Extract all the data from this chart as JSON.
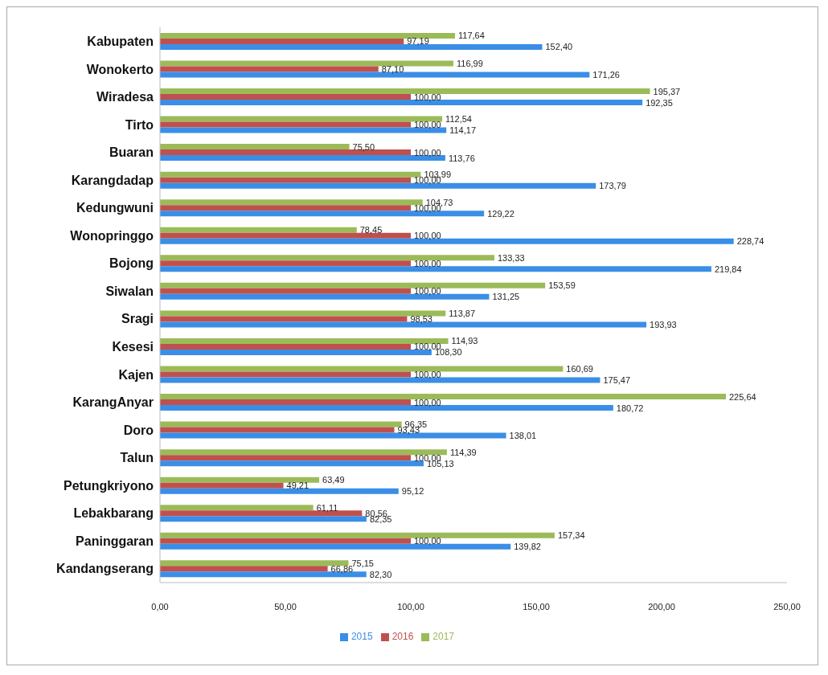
{
  "chart_data": {
    "type": "bar",
    "orientation": "horizontal",
    "categories": [
      "Kabupaten",
      "Wonokerto",
      "Wiradesa",
      "Tirto",
      "Buaran",
      "Karangdadap",
      "Kedungwuni",
      "Wonopringgo",
      "Bojong",
      "Siwalan",
      "Sragi",
      "Kesesi",
      "Kajen",
      "KarangAnyar",
      "Doro",
      "Talun",
      "Petungkriyono",
      "Lebakbarang",
      "Paninggaran",
      "Kandangserang"
    ],
    "series": [
      {
        "name": "2017",
        "color": "#9bbb59",
        "values": [
          117.64,
          116.99,
          195.37,
          112.54,
          75.5,
          103.99,
          104.73,
          78.45,
          133.33,
          153.59,
          113.87,
          114.93,
          160.69,
          225.64,
          96.35,
          114.39,
          63.49,
          61.11,
          157.34,
          75.15
        ],
        "value_labels": [
          "117,64",
          "116,99",
          "195,37",
          "112,54",
          "75,50",
          "103,99",
          "104,73",
          "78,45",
          "133,33",
          "153,59",
          "113,87",
          "114,93",
          "160,69",
          "225,64",
          "96,35",
          "114,39",
          "63,49",
          "61,11",
          "157,34",
          "75,15"
        ]
      },
      {
        "name": "2016",
        "color": "#c0504d",
        "values": [
          97.19,
          87.1,
          100.0,
          100.0,
          100.0,
          100.0,
          100.0,
          100.0,
          100.0,
          100.0,
          98.53,
          100.0,
          100.0,
          100.0,
          93.43,
          100.0,
          49.21,
          80.56,
          100.0,
          66.86
        ],
        "value_labels": [
          "97,19",
          "87,10",
          "100,00",
          "100,00",
          "100,00",
          "100,00",
          "100,00",
          "100,00",
          "100,00",
          "100,00",
          "98,53",
          "100,00",
          "100,00",
          "100,00",
          "93,43",
          "100,00",
          "49,21",
          "80,56",
          "100,00",
          "66,86"
        ]
      },
      {
        "name": "2015",
        "color": "#3a8ee6",
        "values": [
          152.4,
          171.26,
          192.35,
          114.17,
          113.76,
          173.79,
          129.22,
          228.74,
          219.84,
          131.25,
          193.93,
          108.3,
          175.47,
          180.72,
          138.01,
          105.13,
          95.12,
          82.35,
          139.82,
          82.3
        ],
        "value_labels": [
          "152,40",
          "171,26",
          "192,35",
          "114,17",
          "113,76",
          "173,79",
          "129,22",
          "228,74",
          "219,84",
          "131,25",
          "193,93",
          "108,30",
          "175,47",
          "180,72",
          "138,01",
          "105,13",
          "95,12",
          "82,35",
          "139,82",
          "82,30"
        ]
      }
    ],
    "xlim": [
      0,
      250
    ],
    "xticks": [
      {
        "value": 0,
        "label": "0,00"
      },
      {
        "value": 50,
        "label": "50,00"
      },
      {
        "value": 100,
        "label": "100,00"
      },
      {
        "value": 150,
        "label": "150,00"
      },
      {
        "value": 200,
        "label": "200,00"
      },
      {
        "value": 250,
        "label": "250,00"
      }
    ],
    "grid": false,
    "legend": "bottom"
  }
}
